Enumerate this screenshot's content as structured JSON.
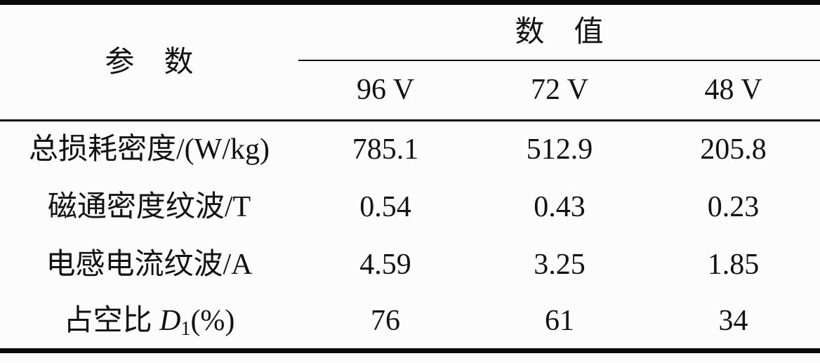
{
  "table": {
    "param_header": "参　数",
    "value_header": "数　值",
    "voltage_columns": [
      "96 V",
      "72 V",
      "48 V"
    ],
    "rows": [
      {
        "label": "总损耗密度/(W/kg)",
        "values": [
          "785.1",
          "512.9",
          "205.8"
        ]
      },
      {
        "label": "磁通密度纹波/T",
        "values": [
          "0.54",
          "0.43",
          "0.23"
        ]
      },
      {
        "label": "电感电流纹波/A",
        "values": [
          "4.59",
          "3.25",
          "1.85"
        ]
      },
      {
        "label": "占空比 D1(%)",
        "label_parts": {
          "prefix": "占空比 ",
          "symbol": "D",
          "subscript": "1",
          "suffix": "(%)"
        },
        "values": [
          "76",
          "61",
          "34"
        ]
      }
    ]
  },
  "colors": {
    "background": "#fcfcfc",
    "text": "#121212",
    "rule": "#0a0a0a"
  }
}
